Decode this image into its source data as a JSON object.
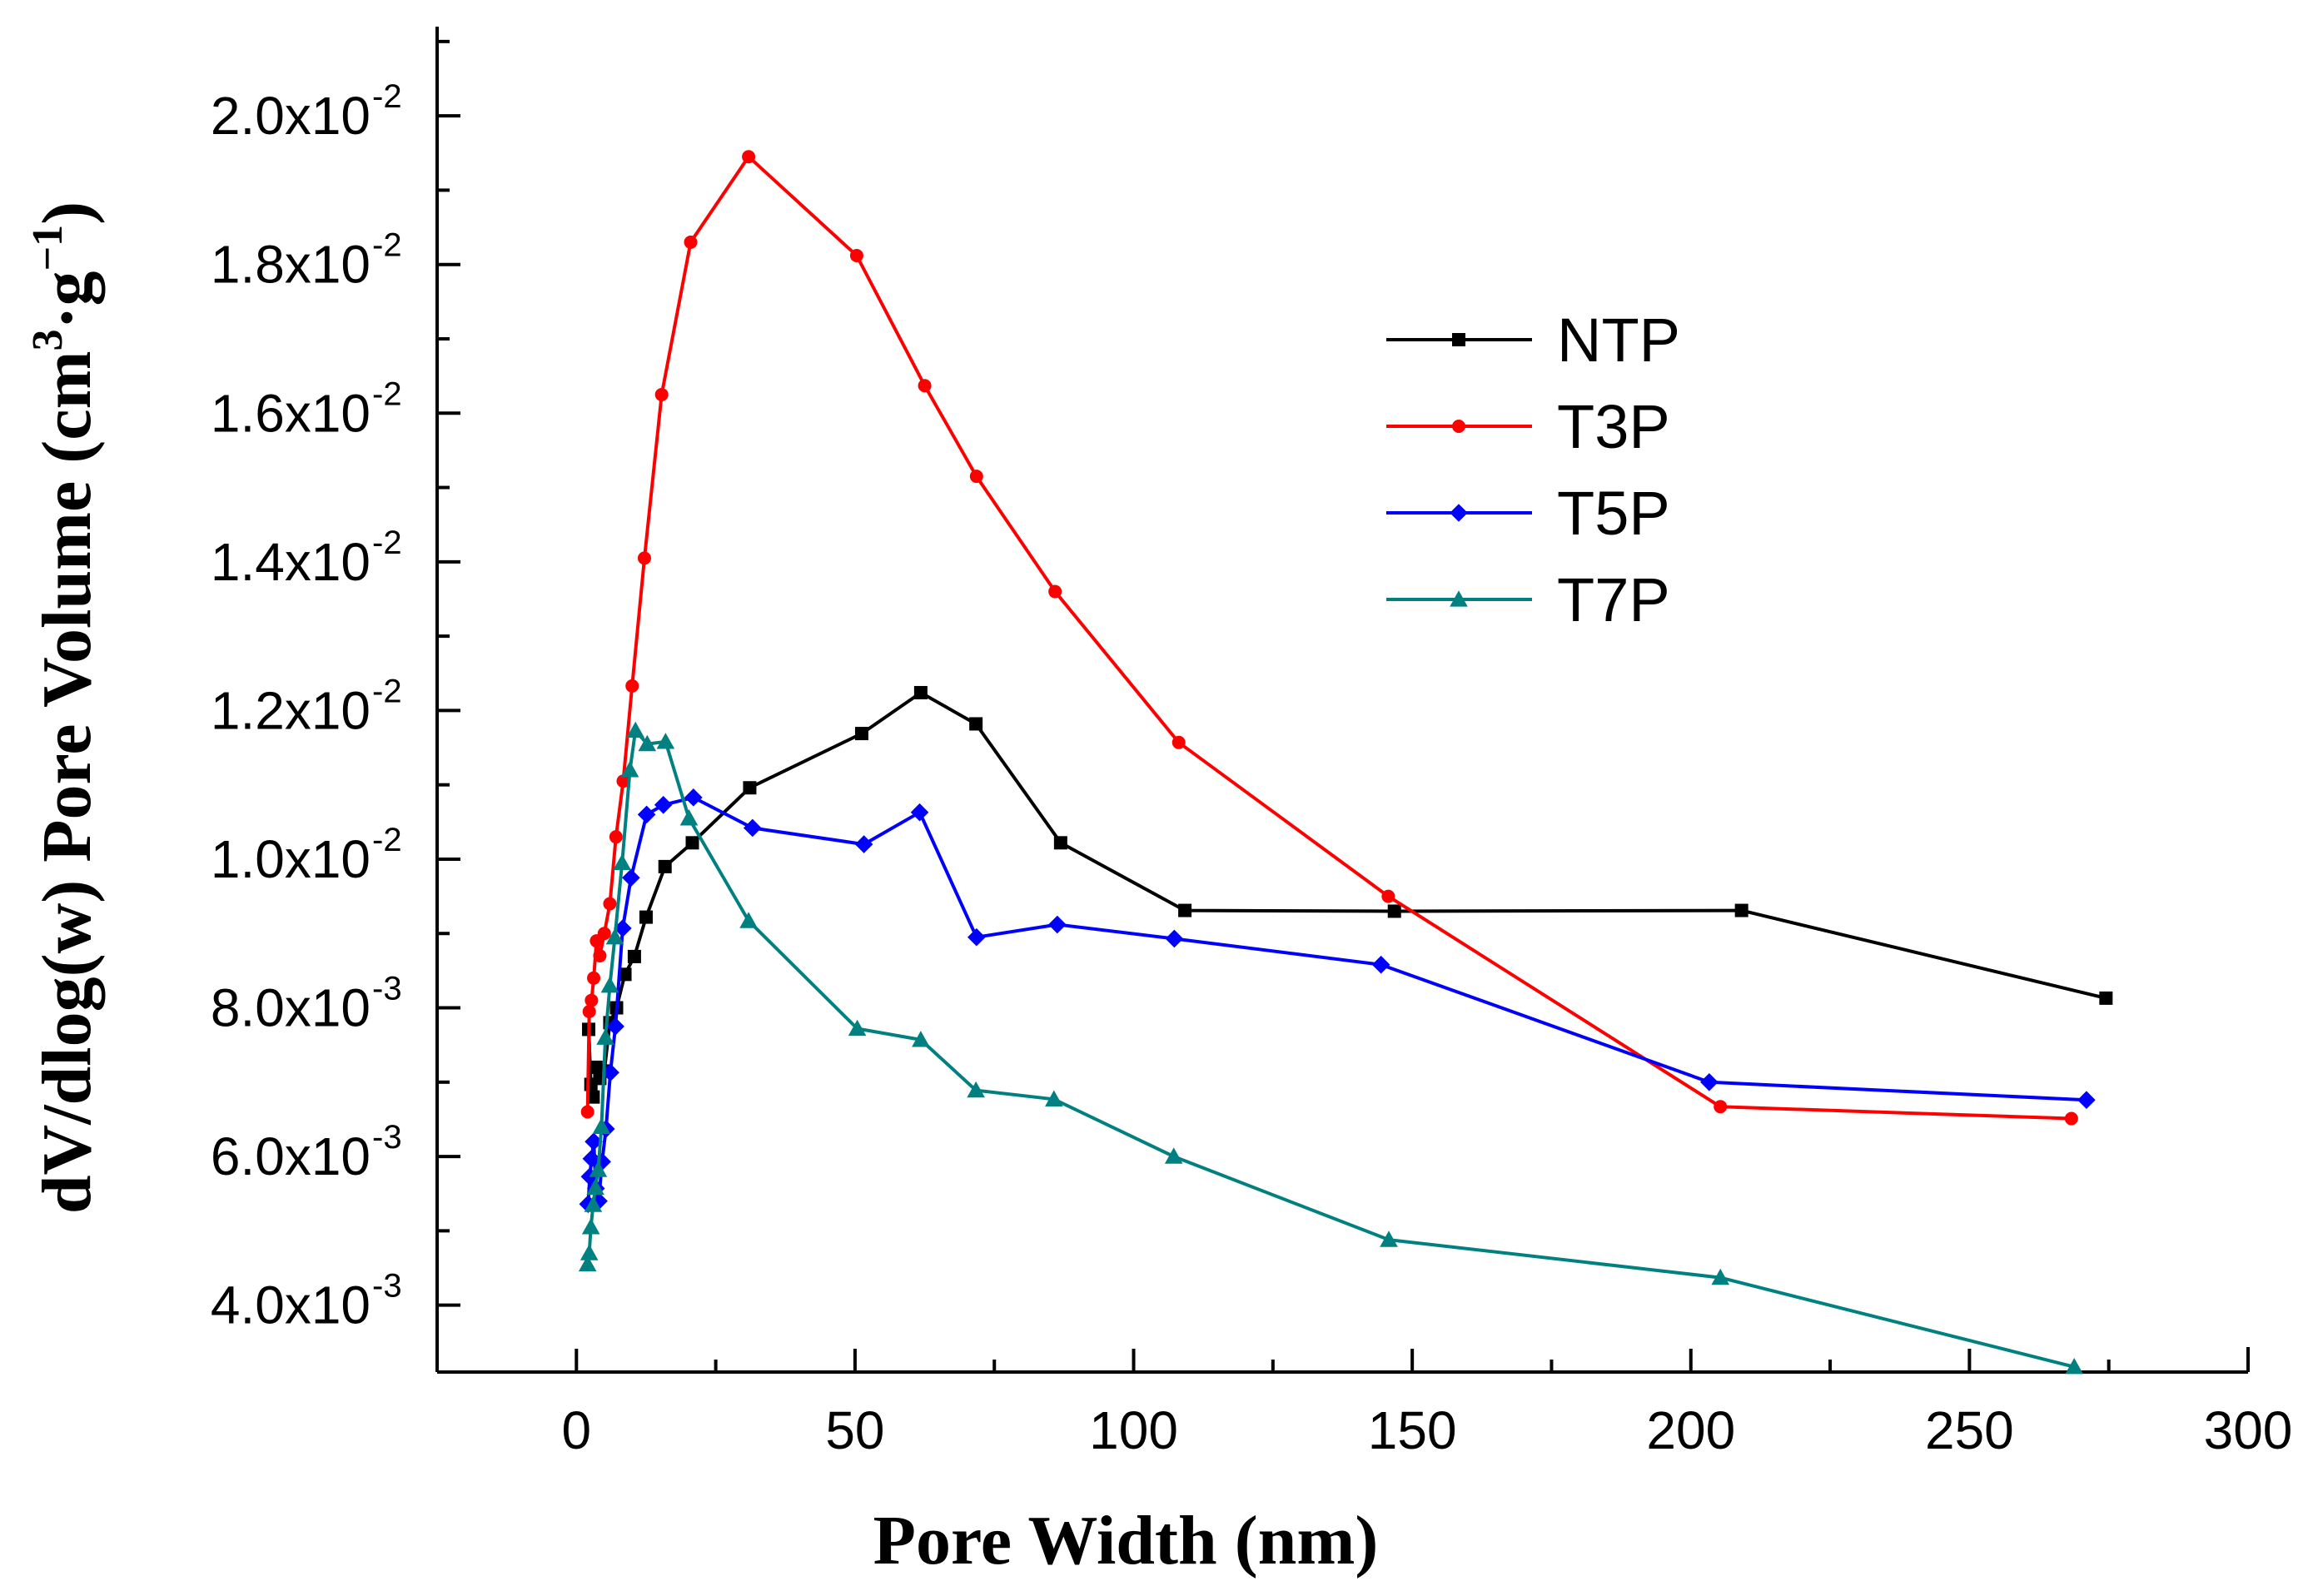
{
  "chart_data": {
    "type": "line",
    "title": "",
    "xlabel": "Pore Width (nm)",
    "ylabel_prefix": "dV/dlog(w) Pore Volume (cm",
    "ylabel_sup1": "3",
    "ylabel_mid": "·g",
    "ylabel_sup2": "−1",
    "ylabel_suffix": ")",
    "xlim": [
      -25,
      300
    ],
    "ylim": [
      0.0031,
      0.0212
    ],
    "x_ticks": [
      {
        "value": 0,
        "label": "0"
      },
      {
        "value": 50,
        "label": "50"
      },
      {
        "value": 100,
        "label": "100"
      },
      {
        "value": 150,
        "label": "150"
      },
      {
        "value": 200,
        "label": "200"
      },
      {
        "value": 250,
        "label": "250"
      },
      {
        "value": 300,
        "label": "300"
      }
    ],
    "y_ticks": [
      {
        "value": 0.004,
        "mantissa": "4.0x10",
        "exponent": "-3"
      },
      {
        "value": 0.006,
        "mantissa": "6.0x10",
        "exponent": "-3"
      },
      {
        "value": 0.008,
        "mantissa": "8.0x10",
        "exponent": "-3"
      },
      {
        "value": 0.01,
        "mantissa": "1.0x10",
        "exponent": "-2"
      },
      {
        "value": 0.012,
        "mantissa": "1.2x10",
        "exponent": "-2"
      },
      {
        "value": 0.014,
        "mantissa": "1.4x10",
        "exponent": "-2"
      },
      {
        "value": 0.016,
        "mantissa": "1.6x10",
        "exponent": "-2"
      },
      {
        "value": 0.018,
        "mantissa": "1.8x10",
        "exponent": "-2"
      },
      {
        "value": 0.02,
        "mantissa": "2.0x10",
        "exponent": "-2"
      }
    ],
    "legend_position": "top-right",
    "series": [
      {
        "name": "NTP",
        "color": "#000000",
        "marker": "square",
        "x": [
          2.2,
          2.6,
          3.0,
          3.5,
          4.2,
          5.0,
          6.0,
          7.2,
          8.7,
          10.4,
          12.5,
          15.9,
          20.8,
          31.1,
          51.2,
          61.8,
          71.7,
          86.9,
          109.2,
          146.8,
          209.1,
          274.5
        ],
        "y": [
          0.00771,
          0.00697,
          0.0068,
          0.0072,
          0.00705,
          0.00715,
          0.0078,
          0.008,
          0.00845,
          0.00869,
          0.00922,
          0.0099,
          0.01022,
          0.01096,
          0.01169,
          0.01224,
          0.01182,
          0.01022,
          0.00931,
          0.0093,
          0.00931,
          0.00813
        ]
      },
      {
        "name": "T3P",
        "color": "#ff0000",
        "marker": "circle",
        "x": [
          2.0,
          2.3,
          2.7,
          3.1,
          3.6,
          4.2,
          5.0,
          6.0,
          7.1,
          8.4,
          10.0,
          12.2,
          15.3,
          20.5,
          30.9,
          50.3,
          62.5,
          71.8,
          85.9,
          108.1,
          145.7,
          205.3,
          268.3
        ],
        "y": [
          0.0066,
          0.00795,
          0.0081,
          0.0084,
          0.0089,
          0.0087,
          0.009,
          0.0094,
          0.0103,
          0.01105,
          0.01233,
          0.01405,
          0.01625,
          0.0183,
          0.01945,
          0.01812,
          0.01637,
          0.01515,
          0.0136,
          0.01157,
          0.0095,
          0.00667,
          0.00651
        ]
      },
      {
        "name": "T5P",
        "color": "#0000ff",
        "marker": "diamond",
        "x": [
          2.1,
          2.4,
          2.7,
          3.1,
          3.5,
          4.0,
          4.6,
          5.3,
          6.1,
          7.0,
          8.3,
          9.8,
          12.6,
          15.6,
          21.0,
          31.6,
          51.6,
          61.6,
          71.8,
          86.3,
          107.3,
          144.4,
          203.3,
          271.0
        ],
        "y": [
          0.00536,
          0.00573,
          0.00597,
          0.0062,
          0.00557,
          0.0054,
          0.00593,
          0.00637,
          0.00713,
          0.00775,
          0.00907,
          0.00975,
          0.0106,
          0.01073,
          0.01083,
          0.01042,
          0.0102,
          0.01063,
          0.00895,
          0.00912,
          0.00893,
          0.00858,
          0.007,
          0.00676
        ]
      },
      {
        "name": "T7P",
        "color": "#008080",
        "marker": "triangle",
        "x": [
          2.0,
          2.3,
          2.6,
          3.0,
          3.4,
          3.9,
          4.5,
          5.2,
          6.0,
          6.9,
          8.2,
          9.6,
          10.6,
          12.7,
          16.0,
          20.2,
          30.9,
          50.4,
          61.8,
          71.7,
          85.7,
          107.2,
          145.8,
          205.3,
          268.8
        ],
        "y": [
          0.00455,
          0.0047,
          0.00505,
          0.00535,
          0.00558,
          0.00582,
          0.0064,
          0.0076,
          0.0083,
          0.00895,
          0.00995,
          0.0112,
          0.01173,
          0.01155,
          0.01158,
          0.01055,
          0.00917,
          0.00772,
          0.00757,
          0.00689,
          0.00677,
          0.006,
          0.00488,
          0.00437,
          0.00317
        ]
      }
    ]
  }
}
